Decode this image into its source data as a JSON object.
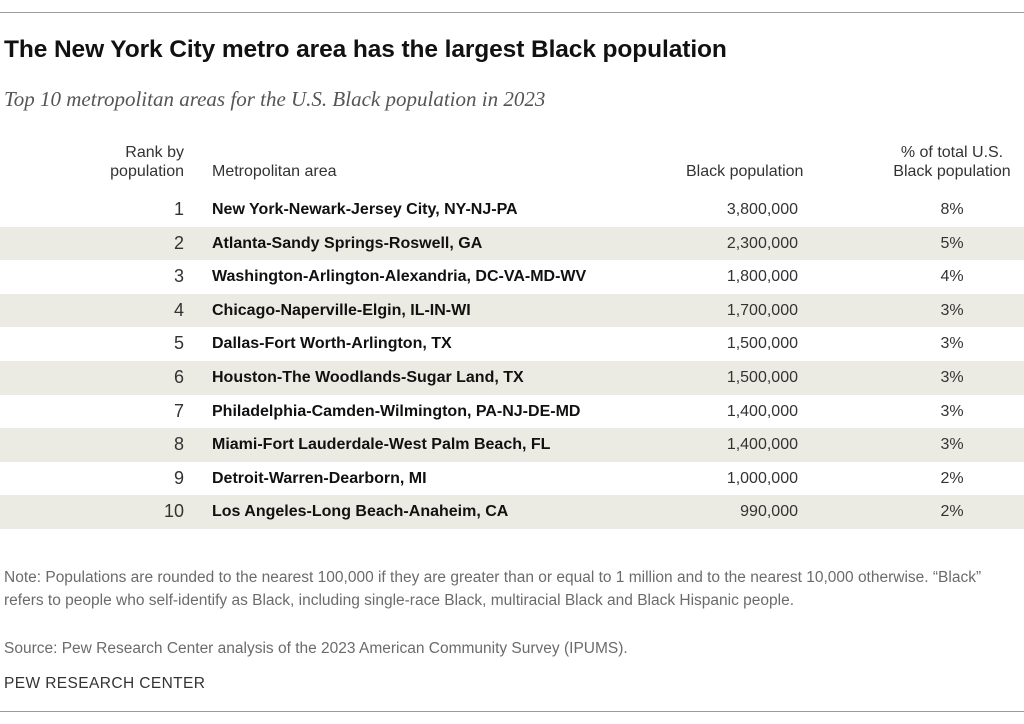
{
  "title": "The New York City metro area has the largest Black population",
  "subtitle": "Top 10 metropolitan areas for the U.S. Black population in 2023",
  "headers": {
    "rank": [
      "Rank by",
      "population"
    ],
    "metro": "Metropolitan area",
    "population": "Black population",
    "pct": [
      "% of total U.S.",
      "Black population"
    ]
  },
  "chart_data": {
    "type": "table",
    "title": "The New York City metro area has the largest Black population",
    "subtitle": "Top 10 metropolitan areas for the U.S. Black population in 2023",
    "columns": [
      "Rank by population",
      "Metropolitan area",
      "Black population",
      "% of total U.S. Black population"
    ],
    "rows": [
      {
        "rank": "1",
        "metro": "New York-Newark-Jersey City, NY-NJ-PA",
        "population": "3,800,000",
        "pct": "8%"
      },
      {
        "rank": "2",
        "metro": "Atlanta-Sandy Springs-Roswell, GA",
        "population": "2,300,000",
        "pct": "5%"
      },
      {
        "rank": "3",
        "metro": "Washington-Arlington-Alexandria, DC-VA-MD-WV",
        "population": "1,800,000",
        "pct": "4%"
      },
      {
        "rank": "4",
        "metro": "Chicago-Naperville-Elgin, IL-IN-WI",
        "population": "1,700,000",
        "pct": "3%"
      },
      {
        "rank": "5",
        "metro": "Dallas-Fort Worth-Arlington, TX",
        "population": "1,500,000",
        "pct": "3%"
      },
      {
        "rank": "6",
        "metro": "Houston-The Woodlands-Sugar Land, TX",
        "population": "1,500,000",
        "pct": "3%"
      },
      {
        "rank": "7",
        "metro": "Philadelphia-Camden-Wilmington, PA-NJ-DE-MD",
        "population": "1,400,000",
        "pct": "3%"
      },
      {
        "rank": "8",
        "metro": "Miami-Fort Lauderdale-West Palm Beach, FL",
        "population": "1,400,000",
        "pct": "3%"
      },
      {
        "rank": "9",
        "metro": "Detroit-Warren-Dearborn, MI",
        "population": "1,000,000",
        "pct": "2%"
      },
      {
        "rank": "10",
        "metro": "Los Angeles-Long Beach-Anaheim, CA",
        "population": "990,000",
        "pct": "2%"
      }
    ]
  },
  "note": "Note: Populations are rounded to the nearest 100,000 if they are greater than or equal to 1 million and to the nearest 10,000 otherwise. “Black” refers to people who self-identify as Black, including single-race Black, multiracial Black and Black Hispanic people.",
  "source": "Source: Pew Research Center analysis of the 2023 American Community Survey (IPUMS).",
  "credit": "PEW RESEARCH CENTER",
  "colors": {
    "row_shade": "#ecebe3",
    "rule": "#9a9a9a",
    "note_text": "#6b6b6b"
  }
}
